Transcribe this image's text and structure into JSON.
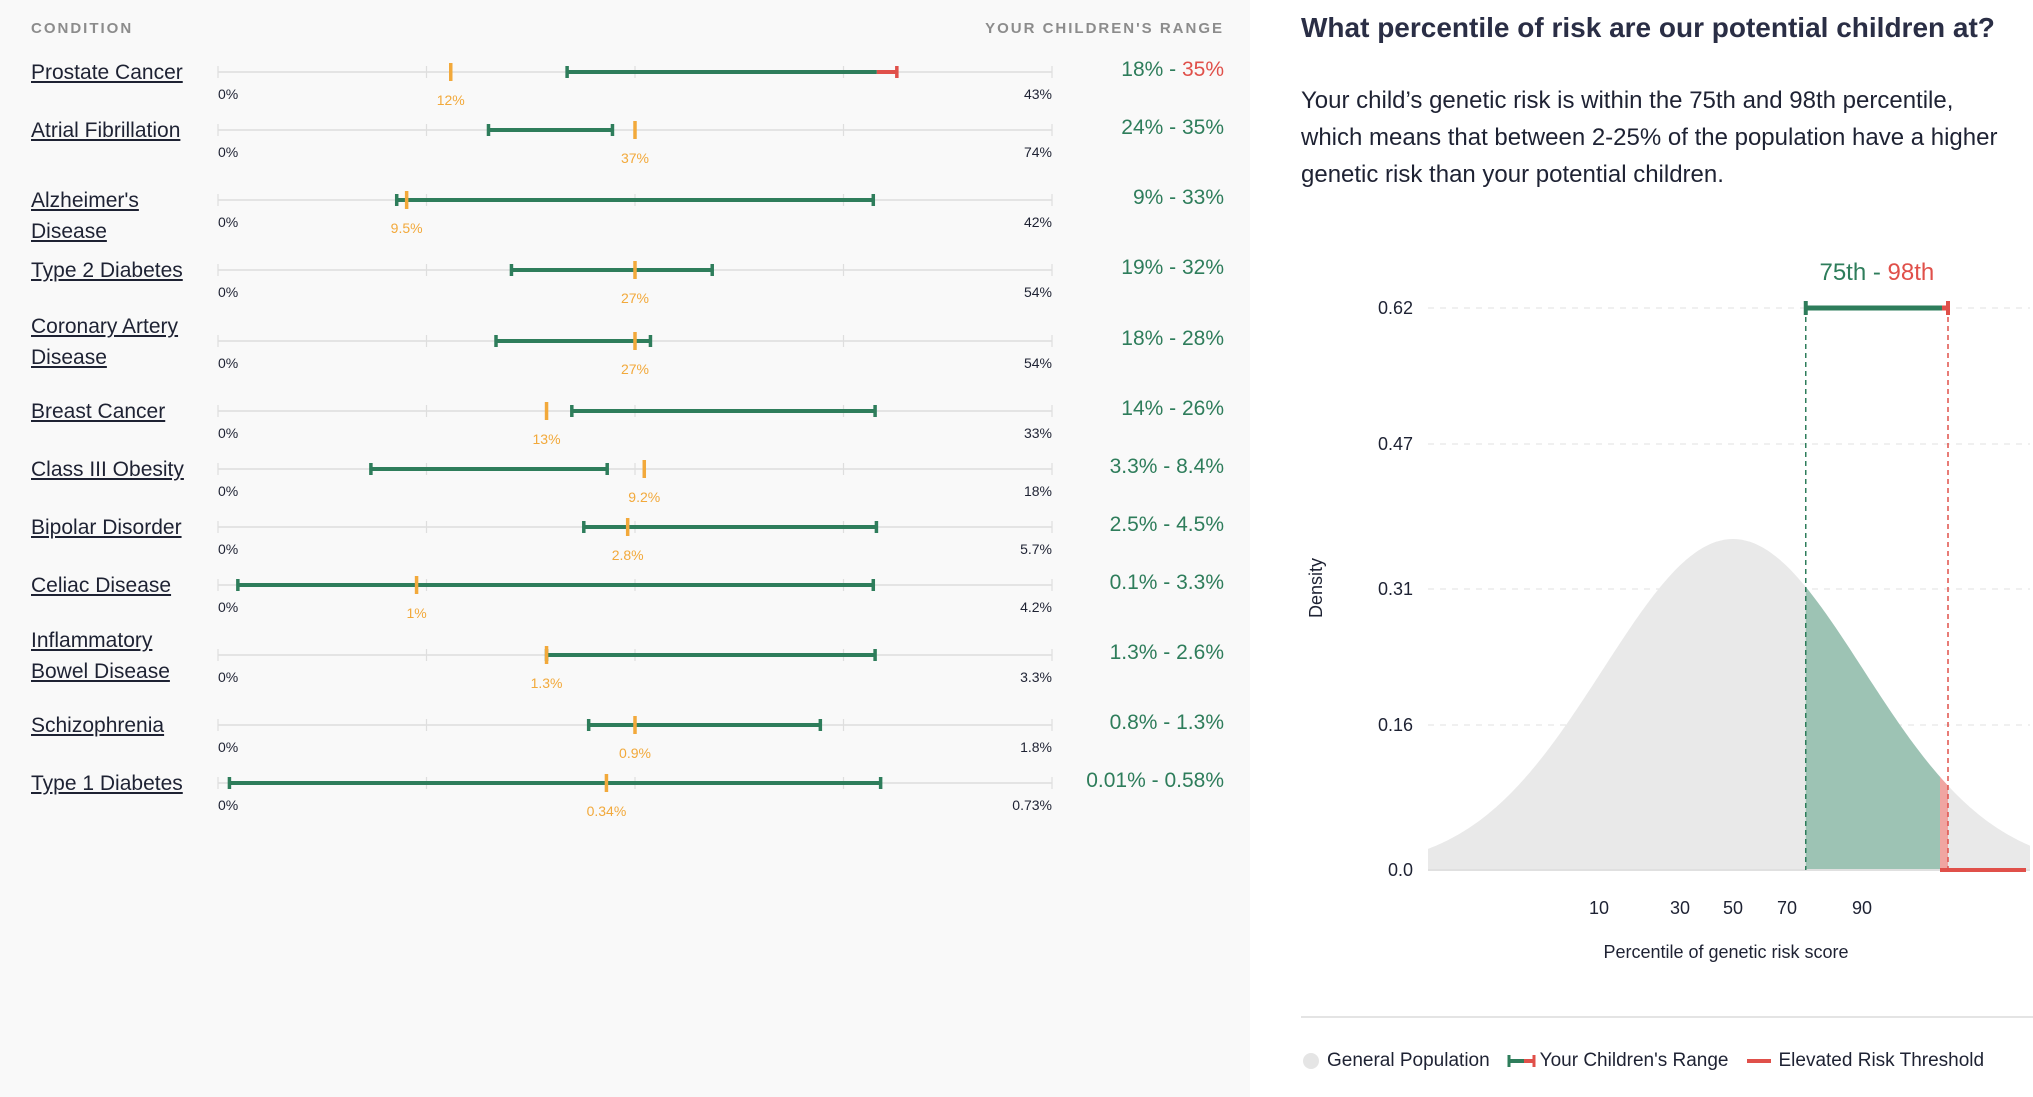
{
  "headers": {
    "condition": "CONDITION",
    "range": "YOUR CHILDREN'S RANGE"
  },
  "colors": {
    "green": "#2e7d5b",
    "red": "#e0504a",
    "orange": "#f2a93b",
    "gray_text": "#8c8c8c",
    "fill_green": "#9dc3b4",
    "fill_gray": "#e9e9e9"
  },
  "chart_data": [
    {
      "type": "range",
      "rows": [
        {
          "condition": "Prostate Cancer",
          "min_label": "0%",
          "max_label": "43%",
          "max": 43,
          "marker": 12,
          "marker_label": "12%",
          "range_low": 18,
          "range_high": 35,
          "range_low_label": "18%",
          "range_high_label": "35%",
          "elevated": true
        },
        {
          "condition": "Atrial Fibrillation",
          "min_label": "0%",
          "max_label": "74%",
          "max": 74,
          "marker": 37,
          "marker_label": "37%",
          "range_low": 24,
          "range_high": 35,
          "range_low_label": "24%",
          "range_high_label": "35%",
          "elevated": false
        },
        {
          "condition": "Alzheimer's Disease",
          "min_label": "0%",
          "max_label": "42%",
          "max": 42,
          "marker": 9.5,
          "marker_label": "9.5%",
          "range_low": 9,
          "range_high": 33,
          "range_low_label": "9%",
          "range_high_label": "33%",
          "elevated": false
        },
        {
          "condition": "Type 2 Diabetes",
          "min_label": "0%",
          "max_label": "54%",
          "max": 54,
          "marker": 27,
          "marker_label": "27%",
          "range_low": 19,
          "range_high": 32,
          "range_low_label": "19%",
          "range_high_label": "32%",
          "elevated": false
        },
        {
          "condition": "Coronary Artery Disease",
          "min_label": "0%",
          "max_label": "54%",
          "max": 54,
          "marker": 27,
          "marker_label": "27%",
          "range_low": 18,
          "range_high": 28,
          "range_low_label": "18%",
          "range_high_label": "28%",
          "elevated": false
        },
        {
          "condition": "Breast Cancer",
          "min_label": "0%",
          "max_label": "33%",
          "max": 33,
          "marker": 13,
          "marker_label": "13%",
          "range_low": 14,
          "range_high": 26,
          "range_low_label": "14%",
          "range_high_label": "26%",
          "elevated": false
        },
        {
          "condition": "Class III Obesity",
          "min_label": "0%",
          "max_label": "18%",
          "max": 18,
          "marker": 9.2,
          "marker_label": "9.2%",
          "range_low": 3.3,
          "range_high": 8.4,
          "range_low_label": "3.3%",
          "range_high_label": "8.4%",
          "elevated": false
        },
        {
          "condition": "Bipolar Disorder",
          "min_label": "0%",
          "max_label": "5.7%",
          "max": 5.7,
          "marker": 2.8,
          "marker_label": "2.8%",
          "range_low": 2.5,
          "range_high": 4.5,
          "range_low_label": "2.5%",
          "range_high_label": "4.5%",
          "elevated": false
        },
        {
          "condition": "Celiac Disease",
          "min_label": "0%",
          "max_label": "4.2%",
          "max": 4.2,
          "marker": 1,
          "marker_label": "1%",
          "range_low": 0.1,
          "range_high": 3.3,
          "range_low_label": "0.1%",
          "range_high_label": "3.3%",
          "elevated": false
        },
        {
          "condition": "Inflammatory Bowel Disease",
          "min_label": "0%",
          "max_label": "3.3%",
          "max": 3.3,
          "marker": 1.3,
          "marker_label": "1.3%",
          "range_low": 1.3,
          "range_high": 2.6,
          "range_low_label": "1.3%",
          "range_high_label": "2.6%",
          "elevated": false
        },
        {
          "condition": "Schizophrenia",
          "min_label": "0%",
          "max_label": "1.8%",
          "max": 1.8,
          "marker": 0.9,
          "marker_label": "0.9%",
          "range_low": 0.8,
          "range_high": 1.3,
          "range_low_label": "0.8%",
          "range_high_label": "1.3%",
          "elevated": false
        },
        {
          "condition": "Type 1 Diabetes",
          "min_label": "0%",
          "max_label": "0.73%",
          "max": 0.73,
          "marker": 0.34,
          "marker_label": "0.34%",
          "range_low": 0.01,
          "range_high": 0.58,
          "range_low_label": "0.01%",
          "range_high_label": "0.58%",
          "elevated": false
        }
      ]
    },
    {
      "type": "area",
      "title": "What percentile of risk are our potential children at?",
      "description": "Your child’s genetic risk is within the 75th and 98th percentile, which means that between 2-25% of the population have a higher genetic risk than your potential children.",
      "xlabel": "Percentile of genetic risk score",
      "ylabel": "Density",
      "x_ticks": [
        10,
        30,
        50,
        70,
        90
      ],
      "y_ticks": [
        "0.0",
        "0.16",
        "0.31",
        "0.47",
        "0.62"
      ],
      "ylim": [
        0,
        0.62
      ],
      "range_label_low": "75th",
      "range_label_sep": " - ",
      "range_label_high": "98th",
      "range_low_percentile": 75,
      "range_high_percentile": 98,
      "legend": [
        "General Population",
        "Your Children's Range",
        "Elevated Risk Threshold"
      ]
    }
  ]
}
